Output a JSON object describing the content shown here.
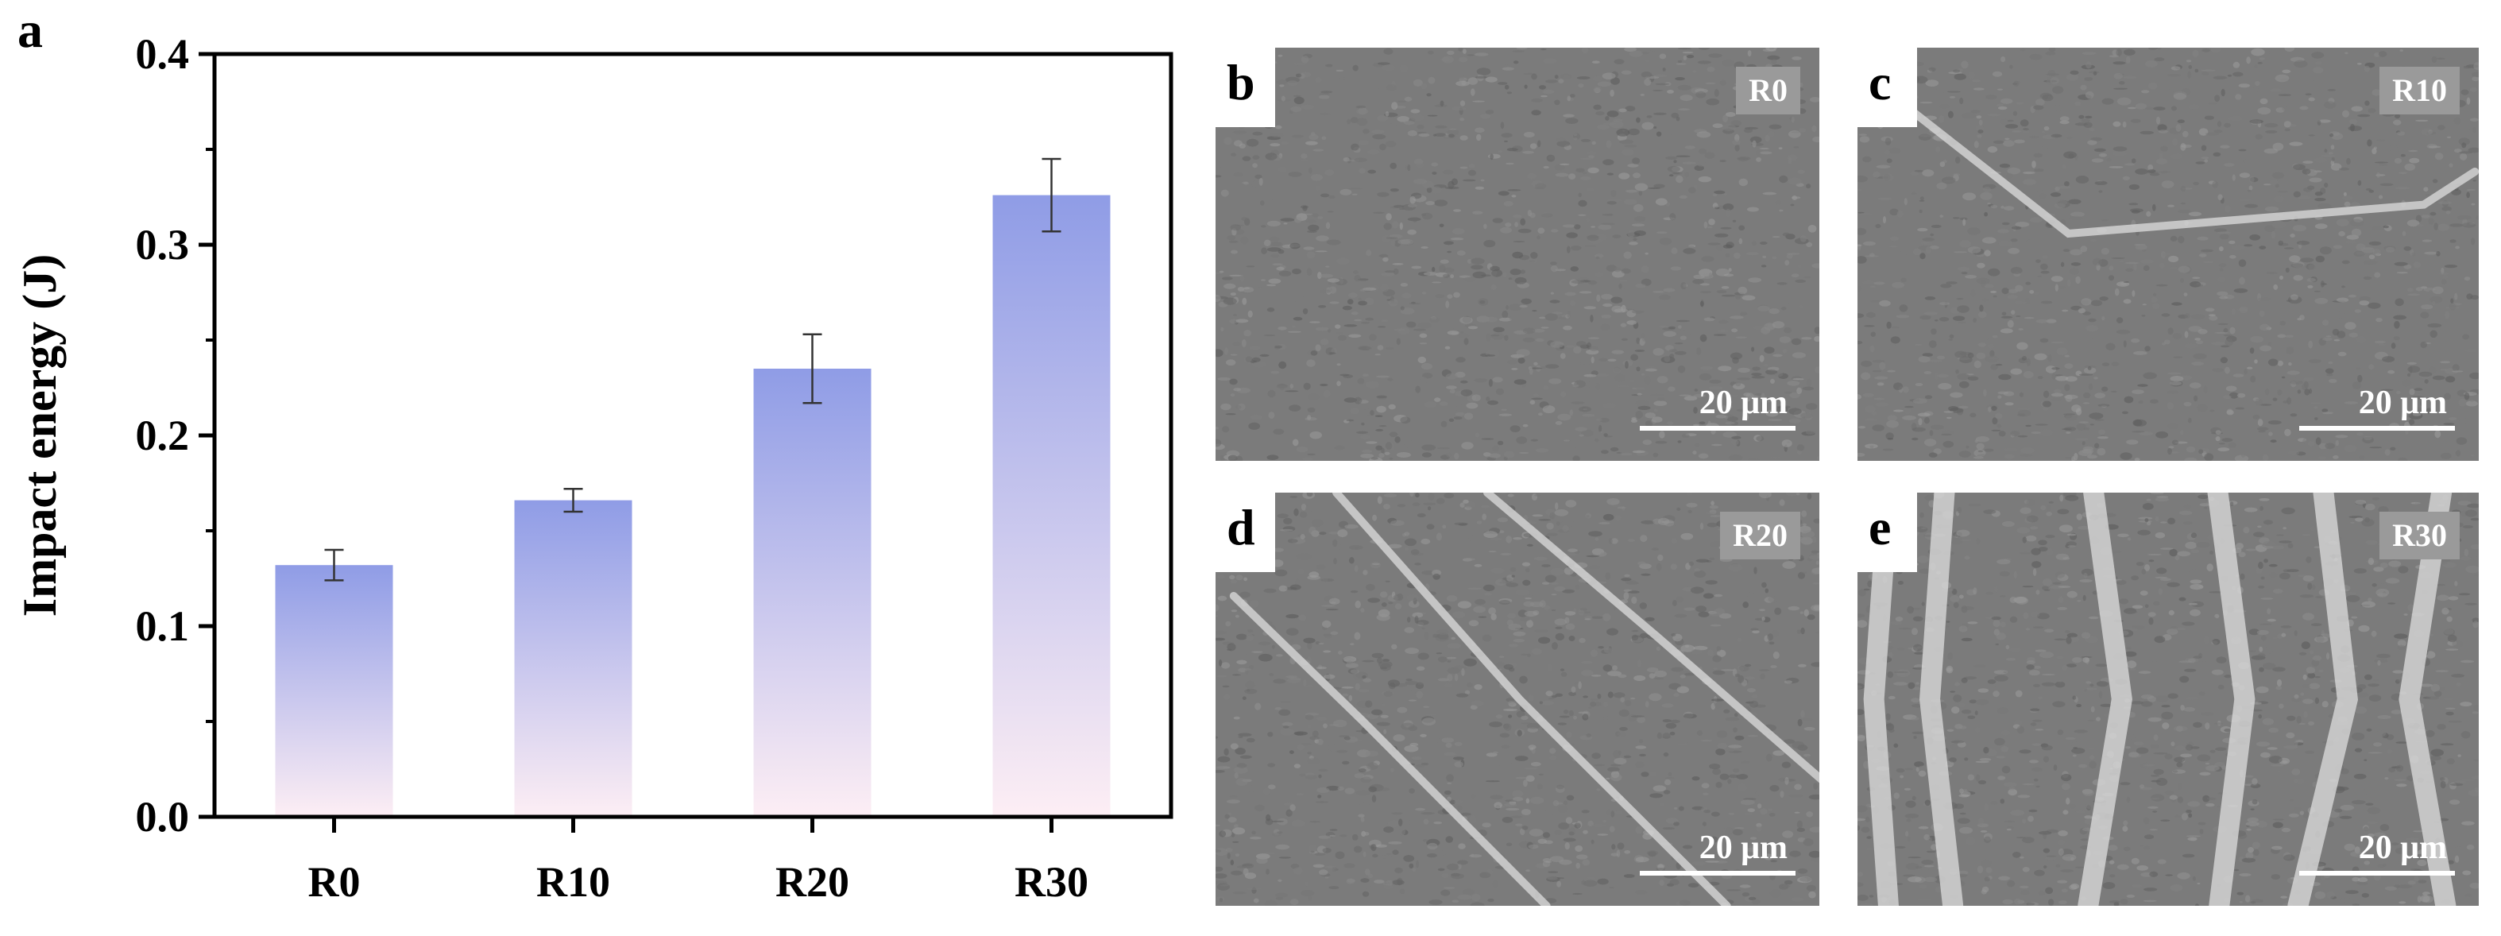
{
  "panel_a_letter": "a",
  "chart_data": {
    "type": "bar",
    "title": "",
    "xlabel": "",
    "ylabel": "Impact energy (J)",
    "categories": [
      "R0",
      "R10",
      "R20",
      "R30"
    ],
    "values": [
      0.132,
      0.166,
      0.235,
      0.326
    ],
    "errors": [
      0.008,
      0.006,
      0.018,
      0.019
    ],
    "ylim": [
      0.0,
      0.4
    ],
    "yticks": [
      "0.0",
      "0.1",
      "0.2",
      "0.3",
      "0.4"
    ],
    "grid": false,
    "bar_gradient_top": "#8f9ce6",
    "bar_gradient_bottom": "#fdeef4"
  },
  "micrographs": [
    {
      "letter": "b",
      "sample": "R0",
      "scale": "20 μm"
    },
    {
      "letter": "c",
      "sample": "R10",
      "scale": "20 μm"
    },
    {
      "letter": "d",
      "sample": "R20",
      "scale": "20 μm"
    },
    {
      "letter": "e",
      "sample": "R30",
      "scale": "20 μm"
    }
  ]
}
